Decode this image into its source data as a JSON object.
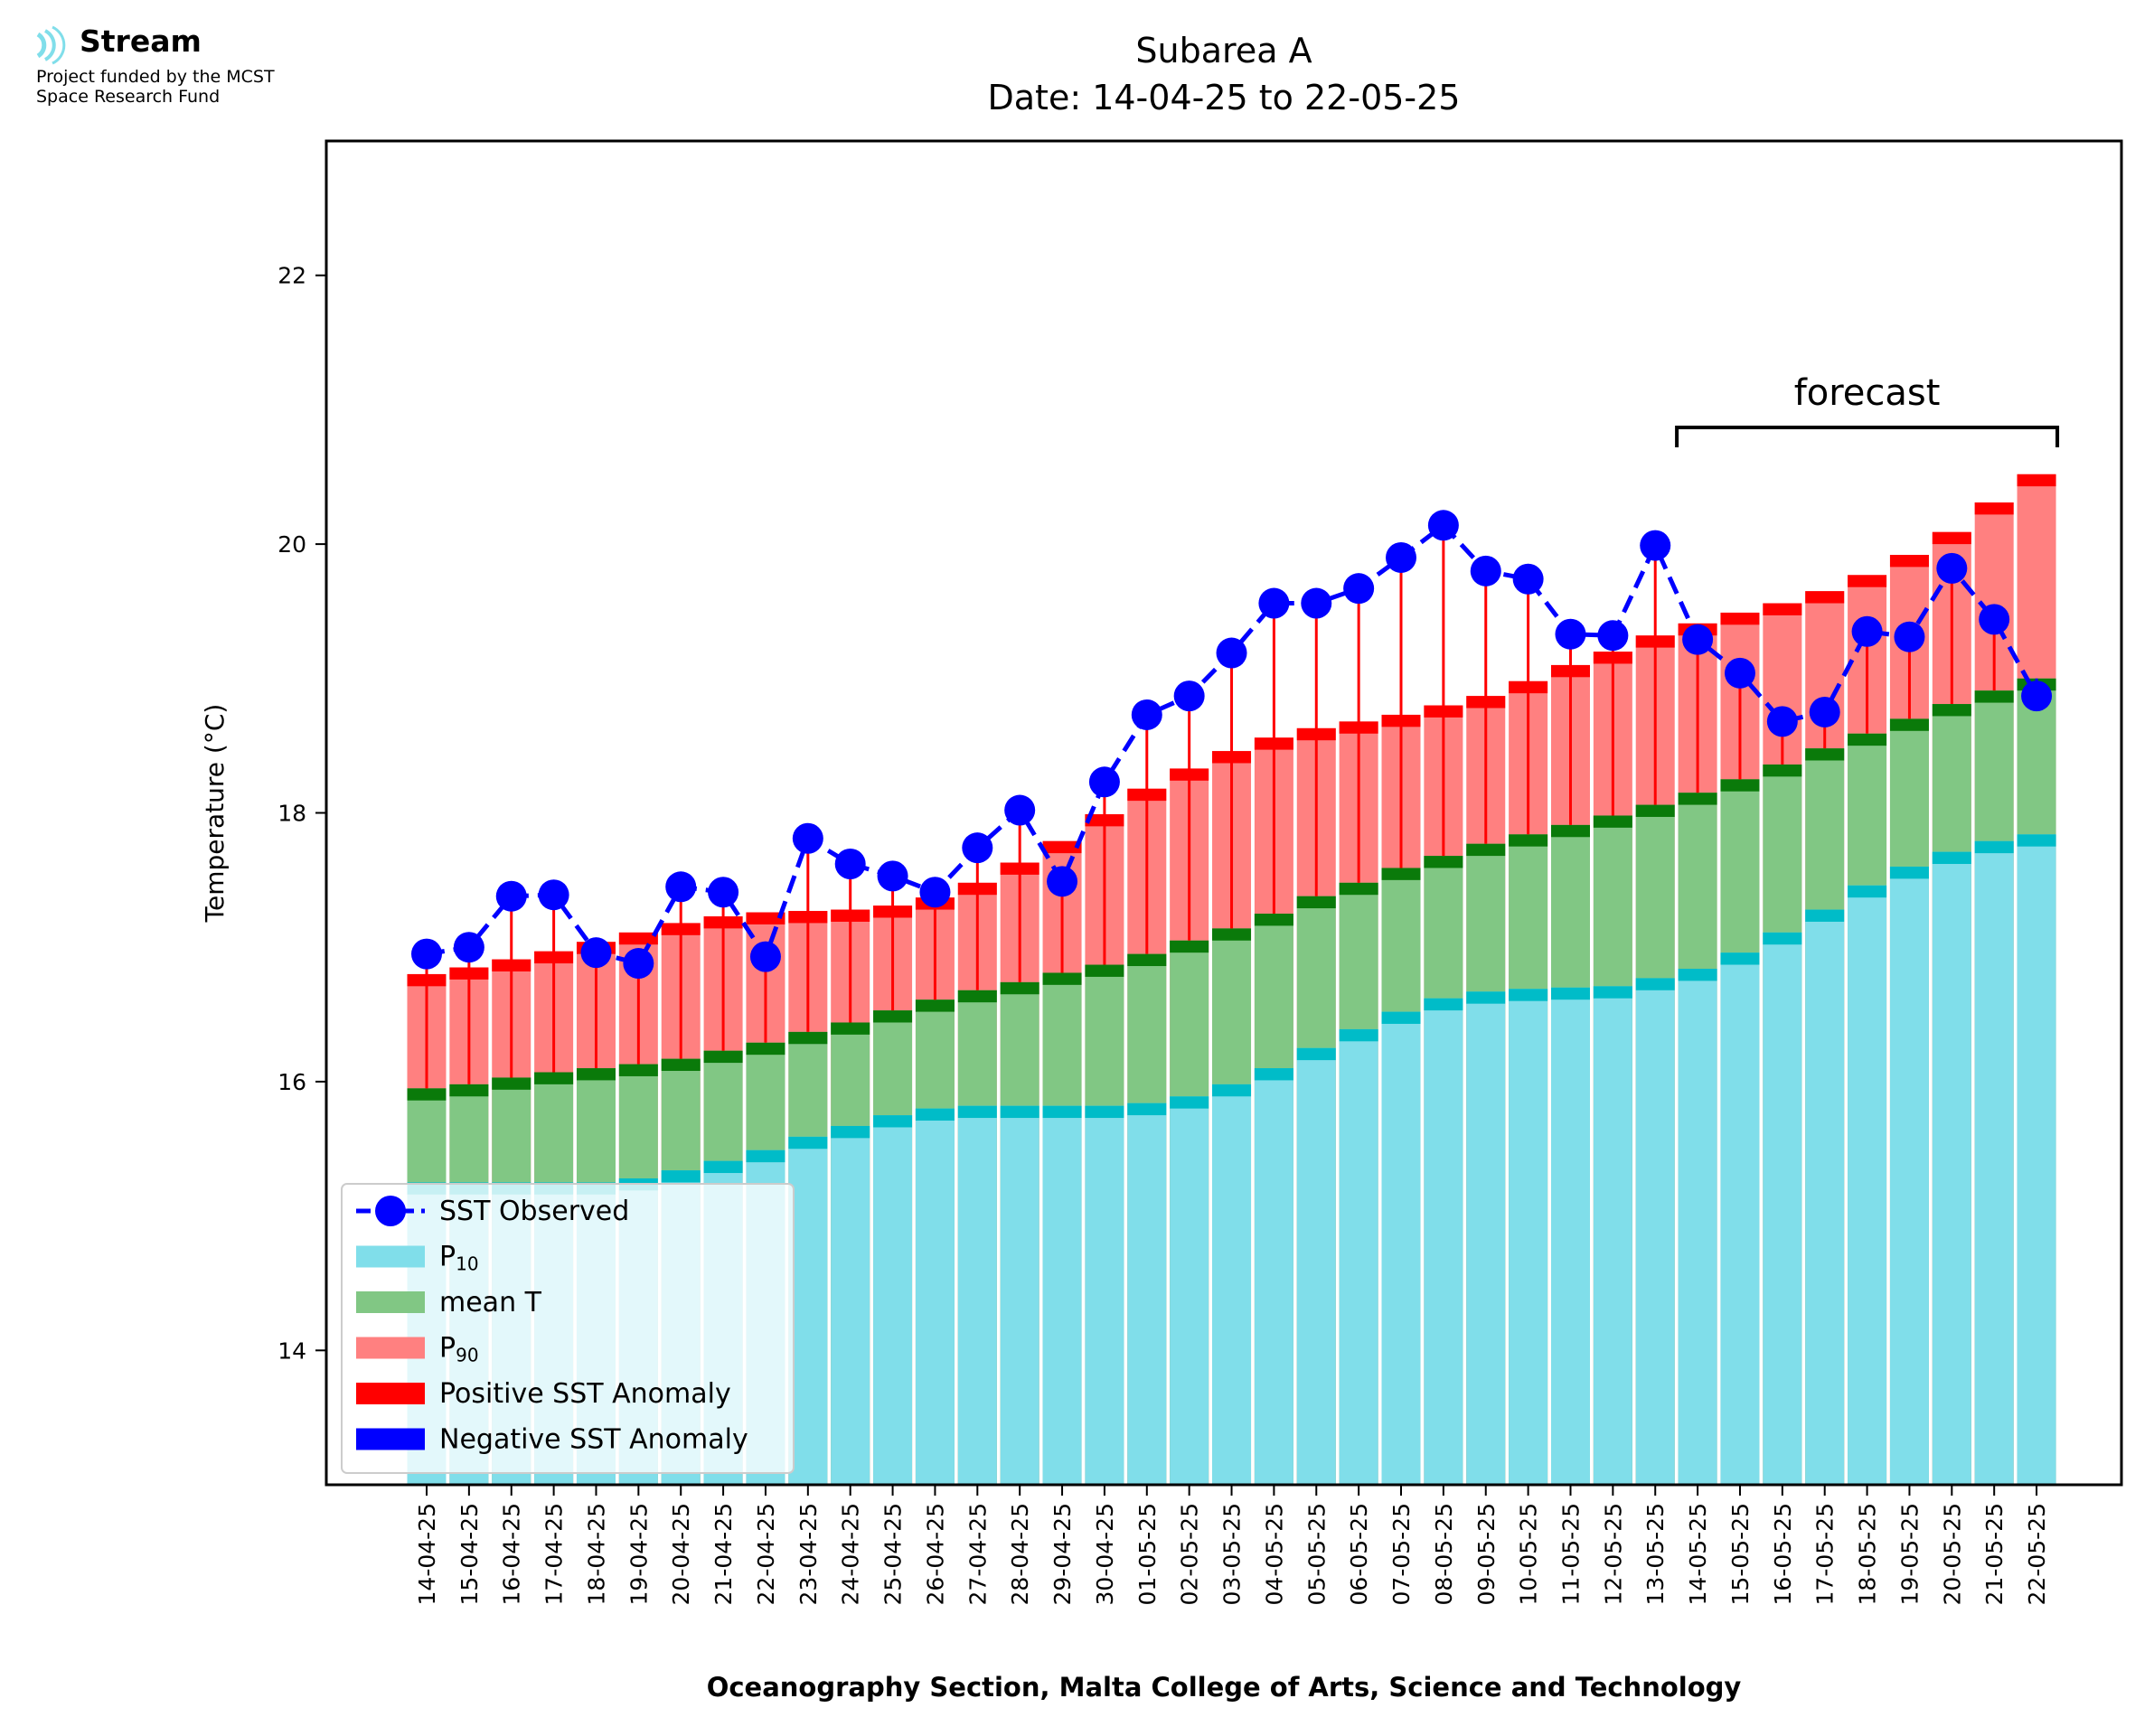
{
  "logo": {
    "name": "Stream",
    "subtitle_line1": "Project funded by the MCST",
    "subtitle_line2": "Space Research Fund",
    "icon": "stream-waves-icon"
  },
  "chart_data": {
    "type": "bar",
    "title": "Subarea A",
    "subtitle": "Date: 14-04-25 to 22-05-25",
    "xlabel": "Oceanography Section, Malta College of Arts, Science and Technology",
    "ylabel": "Temperature (°C)",
    "ylim": [
      13.0,
      23.0
    ],
    "yticks": [
      14,
      16,
      18,
      20,
      22
    ],
    "grid": false,
    "legend_position": "lower-left",
    "categories": [
      "14-04-25",
      "15-04-25",
      "16-04-25",
      "17-04-25",
      "18-04-25",
      "19-04-25",
      "20-04-25",
      "21-04-25",
      "22-04-25",
      "23-04-25",
      "24-04-25",
      "25-04-25",
      "26-04-25",
      "27-04-25",
      "28-04-25",
      "29-04-25",
      "30-04-25",
      "01-05-25",
      "02-05-25",
      "03-05-25",
      "04-05-25",
      "05-05-25",
      "06-05-25",
      "07-05-25",
      "08-05-25",
      "09-05-25",
      "10-05-25",
      "11-05-25",
      "12-05-25",
      "13-05-25",
      "14-05-25",
      "15-05-25",
      "16-05-25",
      "17-05-25",
      "18-05-25",
      "19-05-25",
      "20-05-25",
      "21-05-25",
      "22-05-25"
    ],
    "series": [
      {
        "name": "SST Observed",
        "kind": "line",
        "color": "#0000ff",
        "values": [
          16.95,
          17.0,
          17.38,
          17.39,
          16.96,
          16.88,
          17.45,
          17.41,
          16.93,
          17.81,
          17.62,
          17.53,
          17.41,
          17.74,
          18.02,
          17.49,
          18.23,
          18.73,
          18.87,
          19.19,
          19.56,
          19.56,
          19.67,
          19.9,
          20.14,
          19.8,
          19.74,
          19.33,
          19.32,
          19.99,
          19.29,
          19.04,
          18.68,
          18.75,
          19.35,
          19.31,
          19.82,
          19.44,
          18.87
        ]
      },
      {
        "name": "P10",
        "label_base": "P",
        "label_sub": "10",
        "kind": "bar",
        "color": "#80deea",
        "values": [
          15.25,
          15.25,
          15.25,
          15.25,
          15.25,
          15.28,
          15.34,
          15.41,
          15.49,
          15.59,
          15.67,
          15.75,
          15.8,
          15.82,
          15.82,
          15.82,
          15.82,
          15.84,
          15.89,
          15.98,
          16.1,
          16.25,
          16.39,
          16.52,
          16.62,
          16.67,
          16.69,
          16.7,
          16.71,
          16.77,
          16.84,
          16.96,
          17.11,
          17.28,
          17.46,
          17.6,
          17.71,
          17.79,
          17.84
        ]
      },
      {
        "name": "mean T",
        "kind": "bar",
        "color": "#81c784",
        "values": [
          15.95,
          15.98,
          16.03,
          16.07,
          16.1,
          16.13,
          16.17,
          16.23,
          16.29,
          16.37,
          16.44,
          16.53,
          16.61,
          16.68,
          16.74,
          16.81,
          16.87,
          16.95,
          17.05,
          17.14,
          17.25,
          17.38,
          17.48,
          17.59,
          17.68,
          17.77,
          17.84,
          17.91,
          17.98,
          18.06,
          18.15,
          18.25,
          18.36,
          18.48,
          18.59,
          18.7,
          18.81,
          18.91,
          19.0
        ]
      },
      {
        "name": "P90",
        "label_base": "P",
        "label_sub": "90",
        "kind": "bar",
        "color": "#ff8080",
        "values": [
          16.8,
          16.85,
          16.91,
          16.97,
          17.04,
          17.11,
          17.18,
          17.23,
          17.26,
          17.27,
          17.28,
          17.31,
          17.37,
          17.48,
          17.63,
          17.79,
          17.99,
          18.18,
          18.33,
          18.46,
          18.56,
          18.63,
          18.68,
          18.73,
          18.8,
          18.87,
          18.98,
          19.1,
          19.2,
          19.32,
          19.41,
          19.49,
          19.56,
          19.65,
          19.77,
          19.92,
          20.09,
          20.31,
          20.52
        ]
      },
      {
        "name": "Positive SST Anomaly",
        "kind": "stem",
        "color": "#ff0000"
      },
      {
        "name": "Negative SST Anomaly",
        "kind": "stem",
        "color": "#0000ff"
      }
    ],
    "annotations": [
      {
        "text": "forecast",
        "from_category": "14-05-25",
        "to_category": "22-05-25"
      }
    ]
  }
}
